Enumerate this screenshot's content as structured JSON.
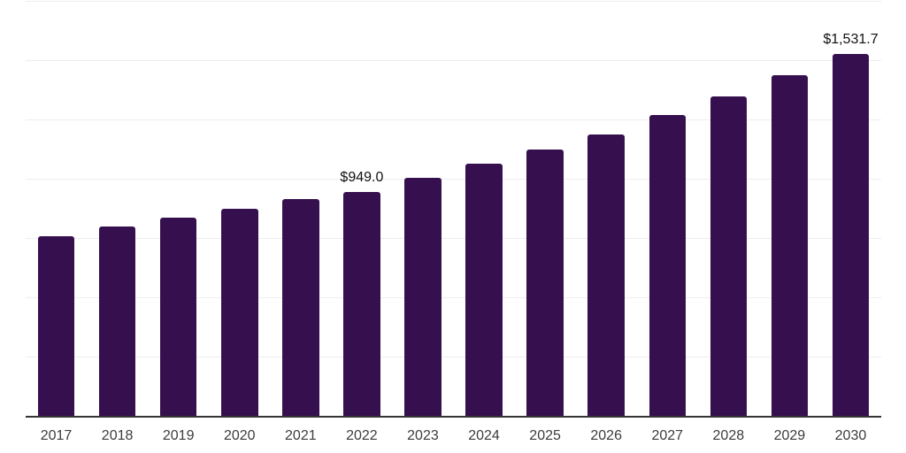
{
  "chart_data": {
    "type": "bar",
    "title": "",
    "xlabel": "",
    "ylabel": "",
    "categories": [
      "2017",
      "2018",
      "2019",
      "2020",
      "2021",
      "2022",
      "2023",
      "2024",
      "2025",
      "2026",
      "2027",
      "2028",
      "2029",
      "2030"
    ],
    "values": [
      760,
      801,
      838,
      876,
      917,
      949.0,
      1007,
      1066,
      1128,
      1192,
      1271,
      1350,
      1440,
      1531.7
    ],
    "data_labels": [
      {
        "index": 5,
        "text": "$949.0"
      },
      {
        "index": 13,
        "text": "$1,531.7"
      }
    ],
    "ylim": [
      0,
      1750
    ],
    "grid_interval": 250,
    "grid_visible": true,
    "y_tick_labels_visible": false,
    "legend_position": "none",
    "colors": {
      "bar": "#36104e",
      "grid_line": "#eeeeee",
      "axis_line": "#333333",
      "tick_label": "#3c3c3c",
      "data_label": "#111111",
      "background": "#ffffff"
    }
  }
}
